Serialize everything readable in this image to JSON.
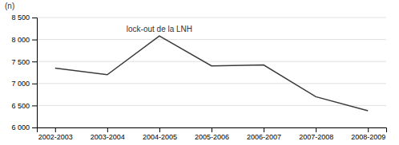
{
  "chart_data": {
    "type": "line",
    "categories": [
      "2002-2003",
      "2003-2004",
      "2004-2005",
      "2005-2006",
      "2006-2007",
      "2007-2008",
      "2008-2009"
    ],
    "values": [
      7350,
      7200,
      8080,
      7400,
      7420,
      6700,
      6380
    ],
    "color": "#3a3a3a",
    "ylabel": "(n)",
    "ylim": [
      6000,
      8500
    ],
    "yticks": [
      {
        "value": 6000,
        "label": "6 000"
      },
      {
        "value": 6500,
        "label": "6 500"
      },
      {
        "value": 7000,
        "label": "7 000"
      },
      {
        "value": 7500,
        "label": "7 500"
      },
      {
        "value": 8000,
        "label": "8 000"
      },
      {
        "value": 8500,
        "label": "8 500"
      }
    ],
    "grid": true,
    "annotations": [
      {
        "text": "lock-out de la LNH",
        "x": "2004-2005",
        "y": 8230
      }
    ]
  }
}
